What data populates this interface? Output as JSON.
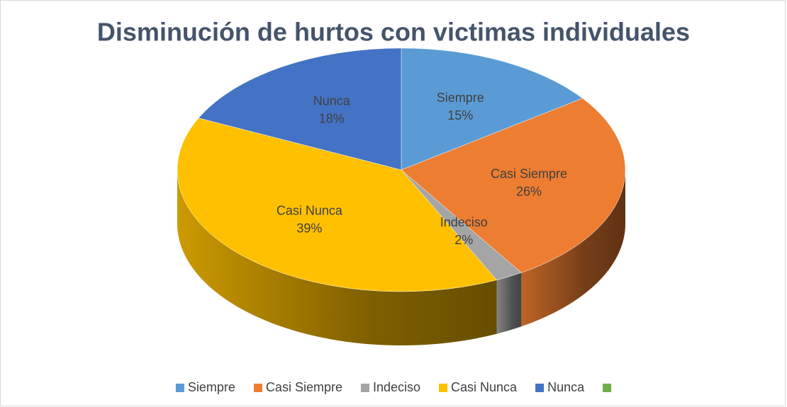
{
  "chart_data": {
    "type": "pie",
    "title": "Disminución de hurtos con victimas individuales",
    "categories": [
      "Siempre",
      "Casi Siempre",
      "Indeciso",
      "Casi Nunca",
      "Nunca",
      null
    ],
    "values": [
      15,
      26,
      2,
      39,
      18,
      null
    ],
    "value_labels": [
      "15%",
      "26%",
      "2%",
      "39%",
      "18%",
      null
    ],
    "colors": [
      "#5b9bd5",
      "#ed7d31",
      "#a5a5a5",
      "#ffc000",
      "#4472c4",
      "#70ad47"
    ],
    "legend": "bottom"
  }
}
